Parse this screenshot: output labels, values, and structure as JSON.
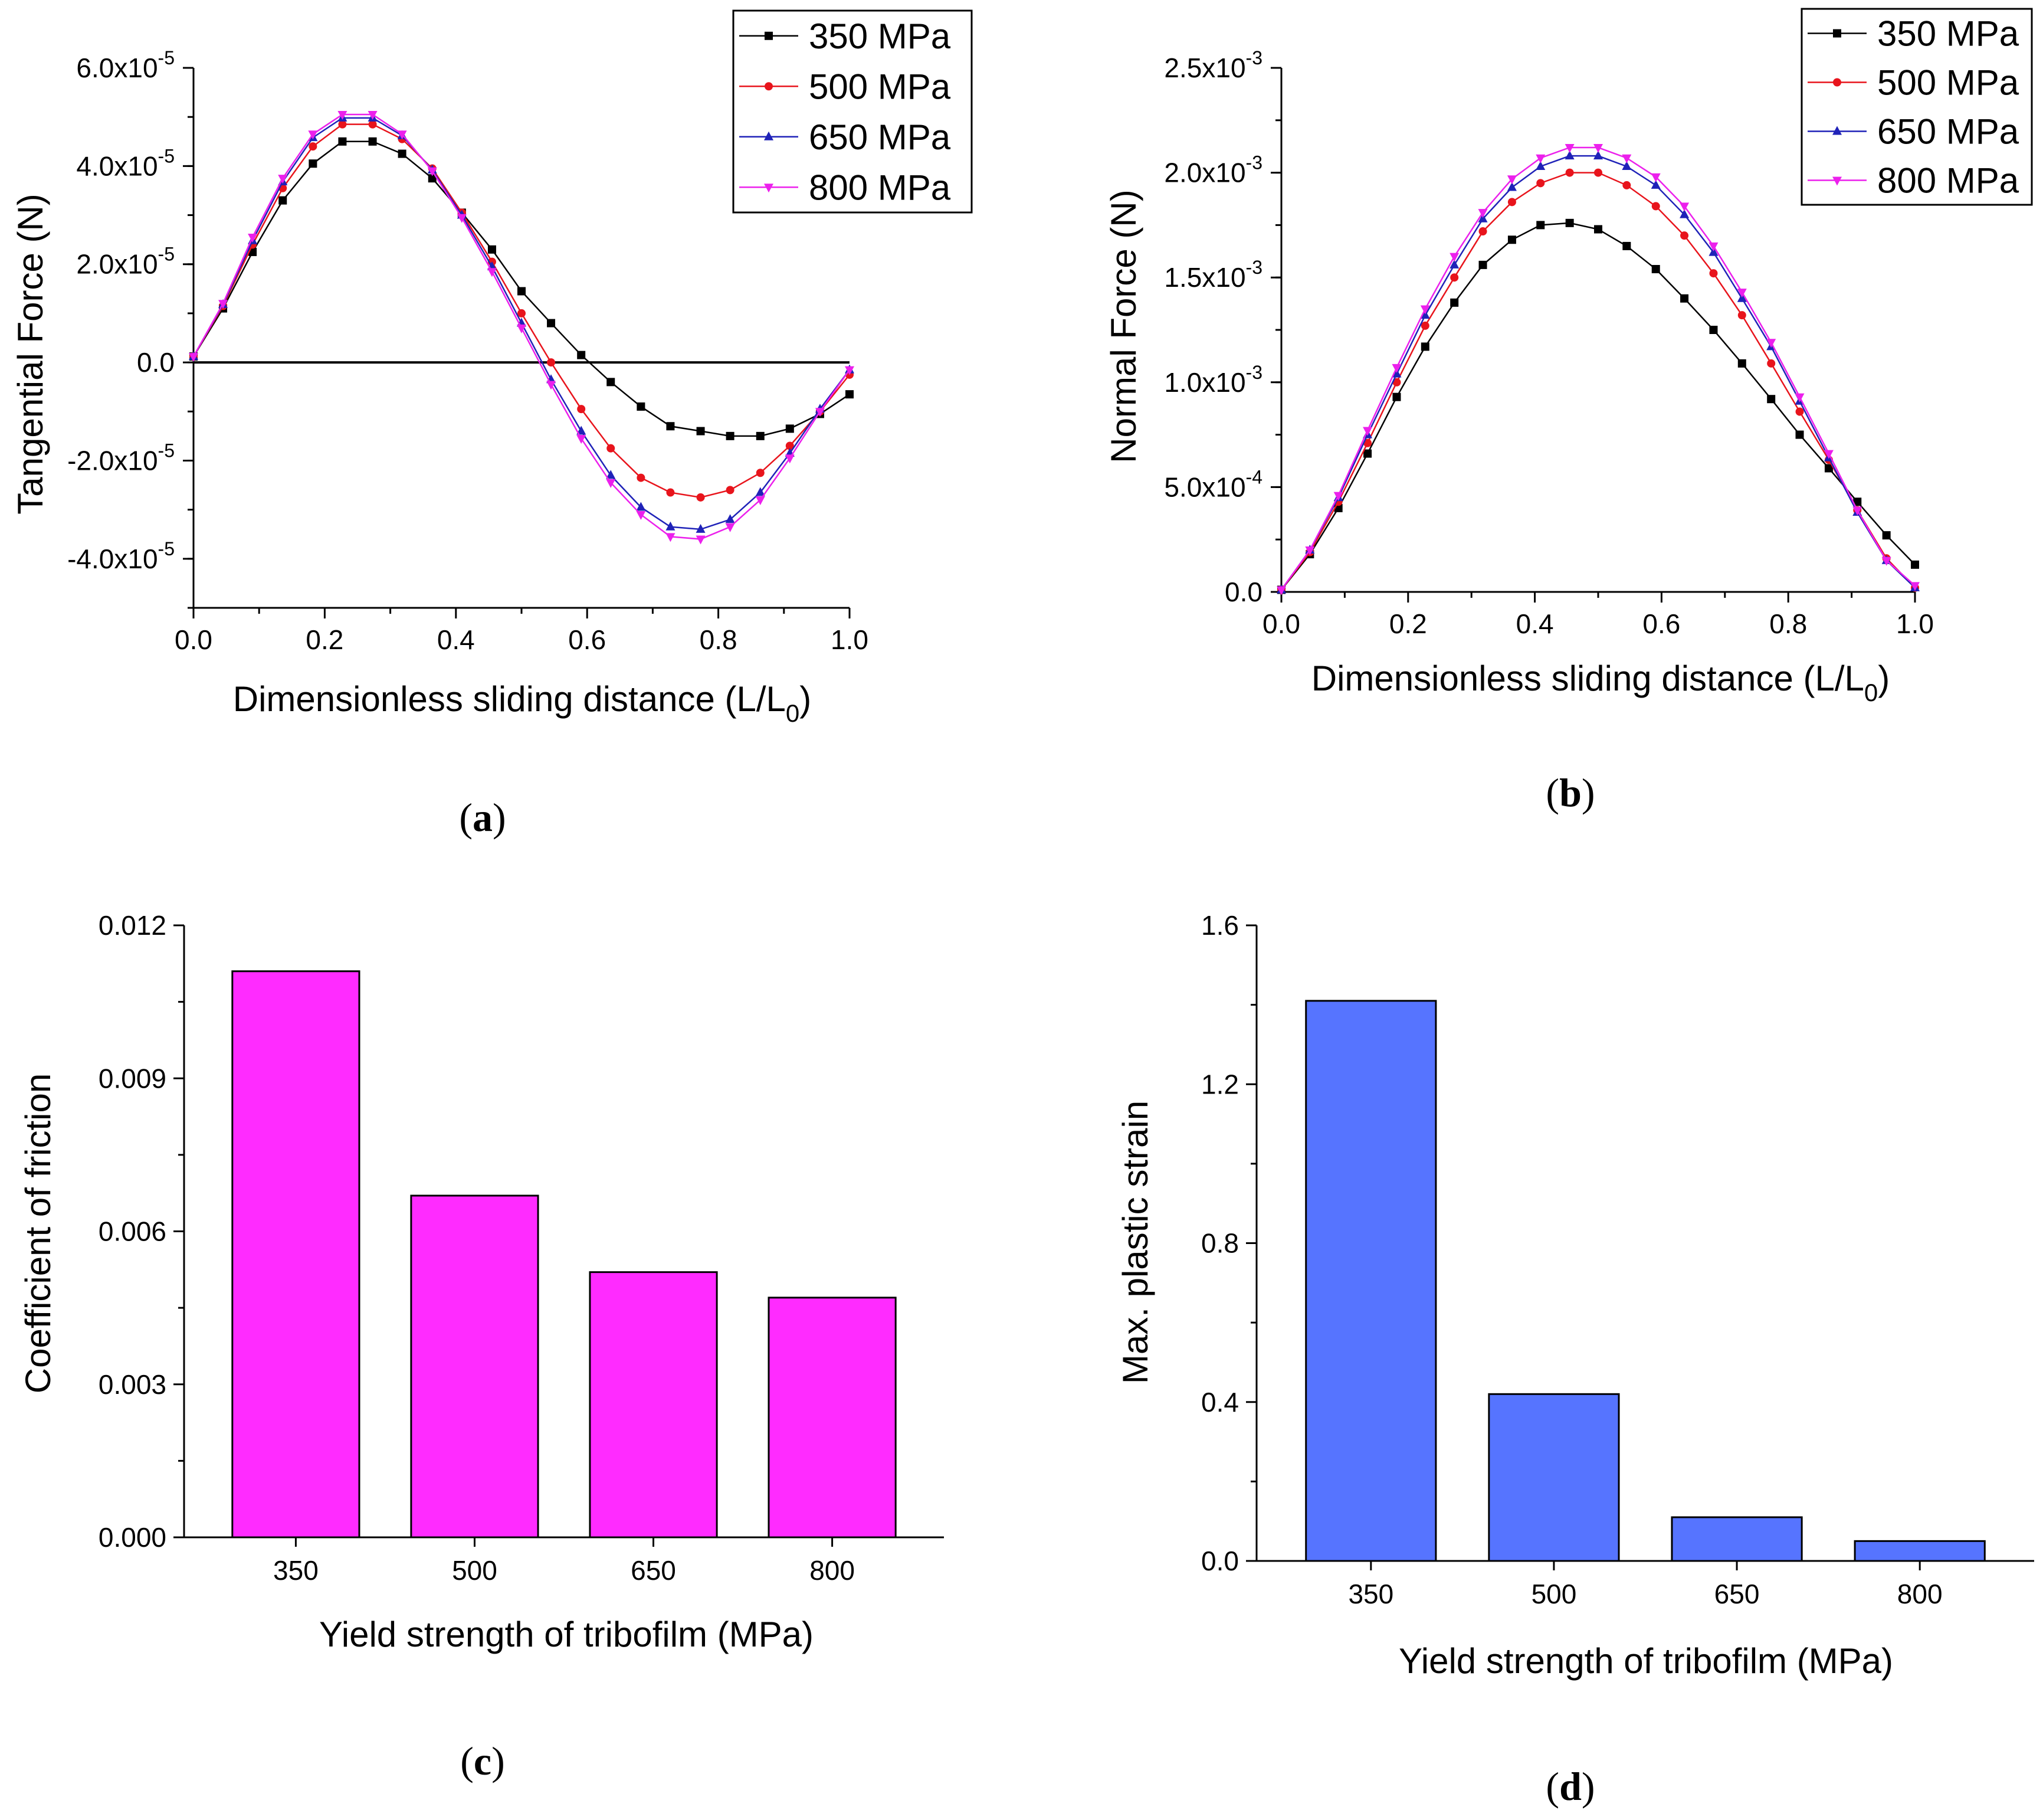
{
  "colors": {
    "s350": "#000000",
    "s500": "#e8141c",
    "s650": "#1f22b8",
    "s800": "#ec20ec",
    "barC": "#ff2bff",
    "barD": "#5674ff"
  },
  "chart_data": [
    {
      "type": "line",
      "panel": "(a)",
      "xlabel_main": "Dimensionless sliding distance (L/L",
      "xlabel_sub": "0",
      "xlabel_end": ")",
      "ylabel": "Tangential Force (N)",
      "xlim": [
        0,
        1.0
      ],
      "ylim": [
        -5e-05,
        6e-05
      ],
      "x_ticks": [
        "0.0",
        "0.2",
        "0.4",
        "0.6",
        "0.8",
        "1.0"
      ],
      "y_ticks": [
        {
          "v": 6e-05,
          "m": "6.0x10",
          "e": "-5"
        },
        {
          "v": 4e-05,
          "m": "4.0x10",
          "e": "-5"
        },
        {
          "v": 2e-05,
          "m": "2.0x10",
          "e": "-5"
        },
        {
          "v": 0,
          "m": "0.0",
          "e": ""
        },
        {
          "v": -2e-05,
          "m": "-2.0x10",
          "e": "-5"
        },
        {
          "v": -4e-05,
          "m": "-4.0x10",
          "e": "-5"
        }
      ],
      "zero_line": true,
      "x": [
        0,
        0.045,
        0.09,
        0.136,
        0.182,
        0.227,
        0.273,
        0.318,
        0.364,
        0.409,
        0.455,
        0.5,
        0.545,
        0.591,
        0.636,
        0.682,
        0.727,
        0.773,
        0.818,
        0.864,
        0.909,
        0.955,
        1.0
      ],
      "series": [
        {
          "name": "350 MPa",
          "color_key": "s350",
          "marker": "square",
          "values": [
            1.2e-06,
            1.1e-05,
            2.25e-05,
            3.3e-05,
            4.05e-05,
            4.5e-05,
            4.5e-05,
            4.25e-05,
            3.75e-05,
            3.05e-05,
            2.3e-05,
            1.45e-05,
            8e-06,
            1.5e-06,
            -4e-06,
            -9e-06,
            -1.3e-05,
            -1.4e-05,
            -1.5e-05,
            -1.5e-05,
            -1.35e-05,
            -1.05e-05,
            -6.5e-06
          ]
        },
        {
          "name": "500 MPa",
          "color_key": "s500",
          "marker": "circle",
          "values": [
            1.2e-06,
            1.15e-05,
            2.4e-05,
            3.55e-05,
            4.4e-05,
            4.85e-05,
            4.85e-05,
            4.55e-05,
            3.95e-05,
            3.05e-05,
            2.05e-05,
            1e-05,
            0.0,
            -9.5e-06,
            -1.75e-05,
            -2.35e-05,
            -2.65e-05,
            -2.75e-05,
            -2.6e-05,
            -2.25e-05,
            -1.7e-05,
            -1e-05,
            -2.5e-06
          ]
        },
        {
          "name": "650 MPa",
          "color_key": "s650",
          "marker": "triangle-up",
          "values": [
            1.2e-06,
            1.18e-05,
            2.48e-05,
            3.68e-05,
            4.58e-05,
            4.98e-05,
            4.98e-05,
            4.62e-05,
            3.92e-05,
            3e-05,
            1.95e-05,
            8e-06,
            -3.5e-06,
            -1.4e-05,
            -2.3e-05,
            -2.95e-05,
            -3.35e-05,
            -3.4e-05,
            -3.2e-05,
            -2.65e-05,
            -1.85e-05,
            -9.5e-06,
            -1.5e-06
          ]
        },
        {
          "name": "800 MPa",
          "color_key": "s800",
          "marker": "triangle-down",
          "values": [
            1.2e-06,
            1.2e-05,
            2.55e-05,
            3.75e-05,
            4.65e-05,
            5.05e-05,
            5.05e-05,
            4.65e-05,
            3.9e-05,
            2.95e-05,
            1.85e-05,
            7e-06,
            -4.5e-06,
            -1.55e-05,
            -2.45e-05,
            -3.1e-05,
            -3.55e-05,
            -3.6e-05,
            -3.35e-05,
            -2.8e-05,
            -1.95e-05,
            -1e-05,
            -1.5e-06
          ]
        }
      ],
      "legend": "top-right"
    },
    {
      "type": "line",
      "panel": "(b)",
      "xlabel_main": "Dimensionless sliding distance (L/L",
      "xlabel_sub": "0",
      "xlabel_end": ")",
      "ylabel": "Normal Force (N)",
      "xlim": [
        0,
        1.0
      ],
      "ylim": [
        0,
        0.0025
      ],
      "x_ticks": [
        "0.0",
        "0.2",
        "0.4",
        "0.6",
        "0.8",
        "1.0"
      ],
      "y_ticks": [
        {
          "v": 0.0025,
          "m": "2.5x10",
          "e": "-3"
        },
        {
          "v": 0.002,
          "m": "2.0x10",
          "e": "-3"
        },
        {
          "v": 0.0015,
          "m": "1.5x10",
          "e": "-3"
        },
        {
          "v": 0.001,
          "m": "1.0x10",
          "e": "-3"
        },
        {
          "v": 0.0005,
          "m": "5.0x10",
          "e": "-4"
        },
        {
          "v": 0,
          "m": "0.0",
          "e": ""
        }
      ],
      "zero_line": false,
      "x": [
        0,
        0.045,
        0.09,
        0.136,
        0.182,
        0.227,
        0.273,
        0.318,
        0.364,
        0.409,
        0.455,
        0.5,
        0.545,
        0.591,
        0.636,
        0.682,
        0.727,
        0.773,
        0.818,
        0.864,
        0.909,
        0.955,
        1.0
      ],
      "series": [
        {
          "name": "350 MPa",
          "color_key": "s350",
          "marker": "square",
          "values": [
            1e-05,
            0.00018,
            0.0004,
            0.00066,
            0.00093,
            0.00117,
            0.00138,
            0.00156,
            0.00168,
            0.00175,
            0.00176,
            0.00173,
            0.00165,
            0.00154,
            0.0014,
            0.00125,
            0.00109,
            0.00092,
            0.00075,
            0.00059,
            0.00043,
            0.00027,
            0.00013
          ]
        },
        {
          "name": "500 MPa",
          "color_key": "s500",
          "marker": "circle",
          "values": [
            1e-05,
            0.00019,
            0.00043,
            0.00071,
            0.001,
            0.00127,
            0.0015,
            0.00172,
            0.00186,
            0.00195,
            0.002,
            0.002,
            0.00194,
            0.00184,
            0.0017,
            0.00152,
            0.00132,
            0.00109,
            0.00086,
            0.00063,
            0.00039,
            0.00016,
            2e-05
          ]
        },
        {
          "name": "650 MPa",
          "color_key": "s650",
          "marker": "triangle-up",
          "values": [
            1e-05,
            0.0002,
            0.00045,
            0.00075,
            0.00104,
            0.00132,
            0.00156,
            0.00178,
            0.00193,
            0.00203,
            0.00208,
            0.00208,
            0.00203,
            0.00194,
            0.0018,
            0.00162,
            0.0014,
            0.00117,
            0.00091,
            0.00064,
            0.00038,
            0.00015,
            2e-05
          ]
        },
        {
          "name": "800 MPa",
          "color_key": "s800",
          "marker": "triangle-down",
          "values": [
            1e-05,
            0.0002,
            0.00046,
            0.00077,
            0.00107,
            0.00135,
            0.0016,
            0.00181,
            0.00197,
            0.00207,
            0.00212,
            0.00212,
            0.00207,
            0.00198,
            0.00184,
            0.00165,
            0.00143,
            0.00119,
            0.00093,
            0.00066,
            0.00039,
            0.00015,
            3e-05
          ]
        }
      ],
      "legend": "top-right"
    },
    {
      "type": "bar",
      "panel": "(c)",
      "xlabel": "Yield strength of tribofilm (MPa)",
      "ylabel": "Coefficient of friction",
      "categories": [
        "350",
        "500",
        "650",
        "800"
      ],
      "values": [
        0.0111,
        0.0067,
        0.0052,
        0.0047
      ],
      "ylim": [
        0,
        0.012
      ],
      "y_ticks": [
        "0.000",
        "0.003",
        "0.006",
        "0.009",
        "0.012"
      ],
      "color_key": "barC"
    },
    {
      "type": "bar",
      "panel": "(d)",
      "xlabel": "Yield strength of tribofilm (MPa)",
      "ylabel": "Max. plastic strain",
      "categories": [
        "350",
        "500",
        "650",
        "800"
      ],
      "values": [
        1.41,
        0.42,
        0.11,
        0.05
      ],
      "ylim": [
        0,
        1.6
      ],
      "y_ticks": [
        "0.0",
        "0.4",
        "0.8",
        "1.2",
        "1.6"
      ],
      "color_key": "barD"
    }
  ],
  "panel_labels": [
    "a",
    "b",
    "c",
    "d"
  ]
}
